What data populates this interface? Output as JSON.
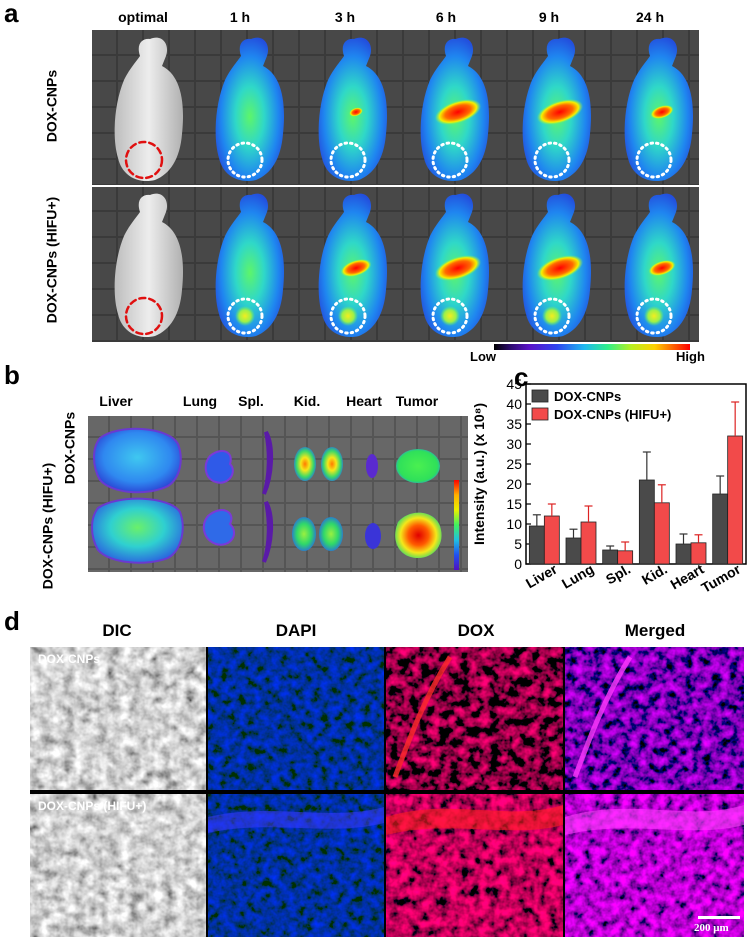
{
  "panel_a": {
    "label": "a",
    "time_headers": [
      "optimal",
      "1 h",
      "3 h",
      "6 h",
      "9 h",
      "24 h"
    ],
    "rows": [
      "DOX-CNPs",
      "DOX-CNPs (HIFU+)"
    ],
    "colorbar": {
      "low": "Low",
      "high": "High"
    }
  },
  "panel_b": {
    "label": "b",
    "organs": [
      "Liver",
      "Lung",
      "Spl.",
      "Kid.",
      "Heart",
      "Tumor"
    ],
    "rows": [
      "DOX-CNPs",
      "DOX-CNPs (HIFU+)"
    ]
  },
  "panel_c": {
    "label": "c"
  },
  "panel_d": {
    "label": "d",
    "channels": [
      "DIC",
      "DAPI",
      "DOX",
      "Merged"
    ],
    "rows": [
      "DOX-CNPs",
      "DOX-CNPs (HIFU+)"
    ],
    "scale_bar": "200 μm"
  },
  "chart_data": {
    "type": "bar",
    "categories": [
      "Liver",
      "Lung",
      "Spl.",
      "Kid.",
      "Heart",
      "Tumor"
    ],
    "series": [
      {
        "name": "DOX-CNPs",
        "values": [
          9.5,
          6.5,
          3.5,
          21,
          5,
          17.5
        ],
        "errors": [
          2.8,
          2.2,
          1.0,
          7.0,
          2.5,
          4.5
        ],
        "color": "#4a4a4a"
      },
      {
        "name": "DOX-CNPs (HIFU+)",
        "values": [
          12,
          10.5,
          3.3,
          15.3,
          5.3,
          32
        ],
        "errors": [
          3.0,
          4.0,
          2.2,
          4.5,
          2.0,
          8.5
        ],
        "color": "#f24a4a"
      }
    ],
    "ylabel": "Intensity (a.u.) (x 10⁸)",
    "ylim": [
      0,
      45
    ],
    "yticks": [
      "0",
      "5",
      "10",
      "15",
      "20",
      "25",
      "30",
      "35",
      "40",
      "45"
    ],
    "legend_position": "top-left"
  }
}
